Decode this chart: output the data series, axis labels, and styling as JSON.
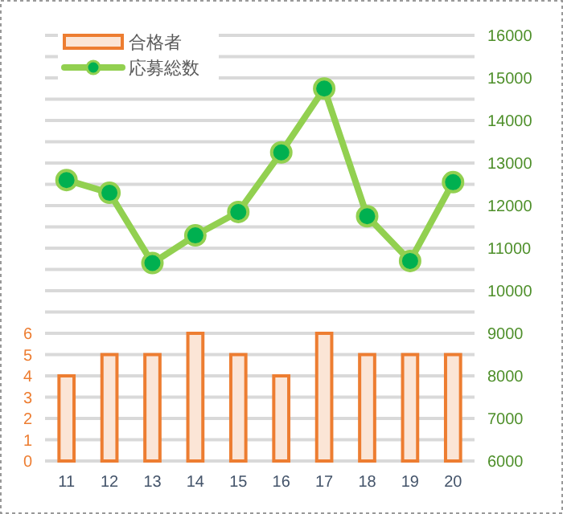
{
  "chart_data": {
    "type": "bar",
    "categories": [
      "11",
      "12",
      "13",
      "14",
      "15",
      "16",
      "17",
      "18",
      "19",
      "20"
    ],
    "series": [
      {
        "name": "合格者",
        "color": "#ed7d31",
        "values": [
          4,
          5,
          5,
          6,
          5,
          4,
          6,
          5,
          5,
          5
        ]
      },
      {
        "name": "応募総数",
        "type": "line",
        "axis": "y2",
        "color": "#92d050",
        "values": [
          12600,
          12300,
          10650,
          11300,
          11850,
          13250,
          14750,
          11750,
          10700,
          12550
        ]
      }
    ],
    "ylim": [
      0,
      20
    ],
    "yticks": [
      0,
      1,
      2,
      3,
      4,
      5,
      6,
      {
        "value": 7,
        "label": null
      },
      {
        "value": 8,
        "label": null
      },
      {
        "value": 9,
        "label": null
      },
      {
        "value": 10,
        "label": null
      },
      {
        "value": 11,
        "label": null
      },
      {
        "value": 12,
        "label": null
      },
      {
        "value": 13,
        "label": null
      },
      {
        "value": 14,
        "label": null
      },
      {
        "value": 15,
        "label": null
      },
      {
        "value": 16,
        "label": null
      },
      {
        "value": 17,
        "label": null
      },
      {
        "value": 18,
        "label": null
      },
      {
        "value": 19,
        "label": null
      },
      {
        "value": 20,
        "label": null
      }
    ],
    "y2lim": [
      6000,
      16000
    ],
    "y2ticks": [
      6000,
      7000,
      8000,
      9000,
      10000,
      11000,
      12000,
      13000,
      14000,
      15000,
      16000
    ],
    "grid": "y",
    "legend": "top left",
    "marker": "circle"
  }
}
